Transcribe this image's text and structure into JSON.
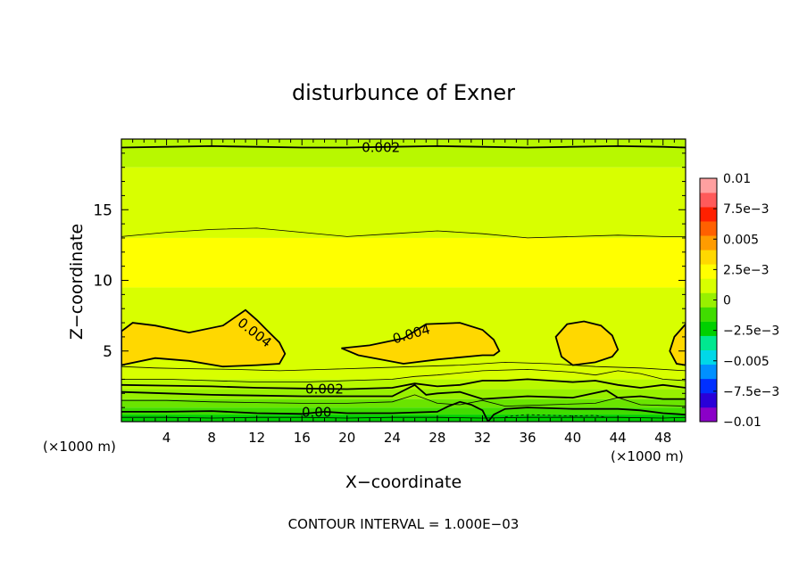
{
  "chart_data": {
    "type": "heatmap",
    "title": "disturbunce of Exner",
    "xlabel": "X−coordinate",
    "ylabel": "Z−coordinate",
    "x_unit_left": "(×1000 m)",
    "x_unit_right": "(×1000 m)",
    "footer": "CONTOUR INTERVAL = 1.000E−03",
    "xlim": [
      0,
      50
    ],
    "ylim": [
      0,
      20
    ],
    "x_ticks": [
      4,
      8,
      12,
      16,
      20,
      24,
      28,
      32,
      36,
      40,
      44,
      48
    ],
    "x_tick_labels": [
      "4",
      "8",
      "12",
      "16",
      "20",
      "24",
      "28",
      "32",
      "36",
      "40",
      "44",
      "48"
    ],
    "y_ticks": [
      5,
      10,
      15
    ],
    "y_tick_labels": [
      "5",
      "10",
      "15"
    ],
    "colorbar": {
      "range": [
        -0.01,
        0.01
      ],
      "tick_values": [
        0.01,
        0.0075,
        0.005,
        0.0025,
        0,
        -0.0025,
        -0.005,
        -0.0075,
        -0.01
      ],
      "tick_labels": [
        "0.01",
        "7.5e−3",
        "0.005",
        "2.5e−3",
        "0",
        "−2.5e−3",
        "−0.005",
        "−7.5e−3",
        "−0.01"
      ],
      "colors": [
        "#8b00c8",
        "#2a00d8",
        "#0030ff",
        "#0090ff",
        "#00d8e8",
        "#00e890",
        "#00d000",
        "#40dc00",
        "#98f000",
        "#d8ff00",
        "#ffff00",
        "#ffd800",
        "#ff9c00",
        "#ff6000",
        "#ff2000",
        "#ff5a5a",
        "#ffa0a0"
      ]
    },
    "z_levels": [
      0.0,
      0.0005,
      0.001,
      0.0015,
      0.002,
      0.0025,
      0.003,
      0.0035,
      0.004
    ],
    "z_profile_fill": [
      {
        "z": 0.0,
        "color": "#00d000"
      },
      {
        "z": 0.5,
        "color": "#40dc00"
      },
      {
        "z": 1.0,
        "color": "#6ae400"
      },
      {
        "z": 1.6,
        "color": "#98f000"
      },
      {
        "z": 2.3,
        "color": "#b8f800"
      },
      {
        "z": 3.0,
        "color": "#d8ff00"
      },
      {
        "z": 9.5,
        "color": "#ffff00"
      },
      {
        "z": 13.0,
        "color": "#d8ff00"
      },
      {
        "z": 18.0,
        "color": "#b8f800"
      },
      {
        "z": 20.0,
        "color": "#98f000"
      }
    ],
    "contour_labels": [
      {
        "text": "0.002",
        "x": 23,
        "z": 19.4
      },
      {
        "text": "0.004",
        "x": 11.8,
        "z": 6.3,
        "rotate": 38
      },
      {
        "text": "0.004",
        "x": 25.7,
        "z": 6.2,
        "rotate": -16
      },
      {
        "text": "0.002",
        "x": 18,
        "z": 2.3
      },
      {
        "text": "0.00",
        "x": 17.3,
        "z": 0.65
      }
    ],
    "highs_004": [
      {
        "x": [
          0,
          1,
          3,
          6,
          9,
          11,
          12,
          13,
          14,
          14.5,
          14,
          12,
          9,
          6,
          3,
          0
        ],
        "z": [
          6.4,
          7.0,
          6.8,
          6.3,
          6.8,
          7.9,
          7.2,
          6.4,
          5.6,
          4.8,
          4.1,
          4.0,
          3.9,
          4.3,
          4.5,
          4.0
        ]
      },
      {
        "x": [
          19.5,
          22,
          25,
          27,
          30,
          32,
          33,
          33.5,
          33,
          32,
          28,
          25,
          21,
          19.5
        ],
        "z": [
          5.2,
          5.4,
          5.9,
          6.9,
          7.0,
          6.5,
          5.8,
          5.0,
          4.7,
          4.7,
          4.4,
          4.1,
          4.7,
          5.2
        ]
      },
      {
        "x": [
          38.5,
          39.5,
          41,
          42.5,
          43.5,
          44,
          43.5,
          42,
          40,
          39,
          38.5
        ],
        "z": [
          6.0,
          6.9,
          7.1,
          6.8,
          6.1,
          5.1,
          4.6,
          4.2,
          4.0,
          4.6,
          6.0
        ]
      },
      {
        "x": [
          49,
          50,
          50,
          49.2,
          48.6,
          49
        ],
        "z": [
          6.0,
          6.9,
          4.0,
          4.1,
          5.0,
          6.0
        ]
      }
    ],
    "contour_lines": [
      {
        "level": 0.002,
        "bold": true,
        "x": [
          0,
          4,
          8,
          12,
          16,
          20,
          24,
          28,
          32,
          36,
          40,
          44,
          48,
          50
        ],
        "z": [
          19.4,
          19.45,
          19.5,
          19.45,
          19.4,
          19.4,
          19.45,
          19.5,
          19.45,
          19.4,
          19.45,
          19.5,
          19.45,
          19.4
        ]
      },
      {
        "level": 0.003,
        "bold": false,
        "x": [
          0,
          4,
          8,
          12,
          16,
          20,
          24,
          28,
          32,
          36,
          40,
          44,
          48,
          50
        ],
        "z": [
          13.1,
          13.4,
          13.6,
          13.7,
          13.4,
          13.1,
          13.3,
          13.5,
          13.3,
          13.0,
          13.1,
          13.2,
          13.1,
          13.1
        ]
      },
      {
        "level": 0.0035,
        "bold": false,
        "x": [
          0,
          3,
          6,
          10,
          14,
          18,
          22,
          26,
          30,
          34,
          38,
          42,
          46,
          50
        ],
        "z": [
          3.9,
          3.8,
          3.75,
          3.7,
          3.6,
          3.7,
          3.8,
          3.9,
          4.0,
          4.2,
          4.1,
          3.9,
          3.8,
          3.6
        ]
      },
      {
        "level": 0.003,
        "bold": false,
        "x": [
          0,
          4,
          8,
          12,
          16,
          20,
          24,
          26,
          28,
          32,
          36,
          40,
          42,
          44,
          46,
          48,
          50
        ],
        "z": [
          3.0,
          3.0,
          2.9,
          2.8,
          2.8,
          2.9,
          3.0,
          3.2,
          3.3,
          3.6,
          3.7,
          3.5,
          3.3,
          3.6,
          3.4,
          3.0,
          2.9
        ]
      },
      {
        "level": 0.0025,
        "bold": true,
        "x": [
          0,
          4,
          8,
          12,
          16,
          20,
          24,
          26,
          28,
          30,
          32,
          34,
          36,
          40,
          42,
          44,
          46,
          48,
          50
        ],
        "z": [
          2.6,
          2.55,
          2.5,
          2.4,
          2.35,
          2.3,
          2.4,
          2.7,
          2.5,
          2.6,
          2.9,
          2.9,
          3.0,
          2.8,
          2.9,
          2.6,
          2.4,
          2.6,
          2.4
        ]
      },
      {
        "level": 0.002,
        "bold": true,
        "x": [
          0,
          4,
          8,
          12,
          16,
          20,
          24,
          26,
          27,
          28,
          30,
          32,
          36,
          40,
          43,
          44,
          46,
          48,
          50
        ],
        "z": [
          2.1,
          2.0,
          1.9,
          1.85,
          1.8,
          1.8,
          1.8,
          2.6,
          1.9,
          2.0,
          2.1,
          1.6,
          1.8,
          1.7,
          2.2,
          1.7,
          1.8,
          1.6,
          1.6
        ]
      },
      {
        "level": 0.0015,
        "bold": false,
        "x": [
          0,
          4,
          8,
          12,
          16,
          20,
          24,
          26,
          28,
          30,
          32,
          34,
          38,
          42,
          44,
          46,
          50
        ],
        "z": [
          1.5,
          1.5,
          1.4,
          1.35,
          1.3,
          1.3,
          1.4,
          1.9,
          1.3,
          1.2,
          1.5,
          1.1,
          1.2,
          1.3,
          1.7,
          1.2,
          1.1
        ]
      },
      {
        "level": 0.0005,
        "bold": true,
        "x": [
          0,
          4,
          8,
          12,
          16,
          18,
          20,
          24,
          28,
          29,
          30,
          31,
          32,
          32.5,
          33,
          34,
          36,
          40,
          44,
          46,
          48,
          50
        ],
        "z": [
          0.7,
          0.7,
          0.75,
          0.6,
          0.55,
          0.7,
          0.6,
          0.6,
          0.7,
          1.1,
          1.4,
          1.2,
          0.8,
          0.0,
          0.5,
          0.9,
          1.0,
          0.9,
          0.9,
          0.8,
          0.6,
          0.5
        ]
      },
      {
        "level": 0.0,
        "bold": false,
        "x": [
          0,
          4,
          8,
          12,
          16,
          20,
          24,
          28,
          32,
          36,
          40,
          44,
          48,
          50
        ],
        "z": [
          0.3,
          0.3,
          0.25,
          0.3,
          0.3,
          0.25,
          0.3,
          0.3,
          0.25,
          0.3,
          0.3,
          0.3,
          0.25,
          0.3
        ]
      }
    ],
    "negative_dashed": {
      "x": [
        34,
        36,
        38,
        40,
        42,
        43
      ],
      "z": [
        0.35,
        0.5,
        0.45,
        0.4,
        0.45,
        0.3
      ]
    }
  }
}
